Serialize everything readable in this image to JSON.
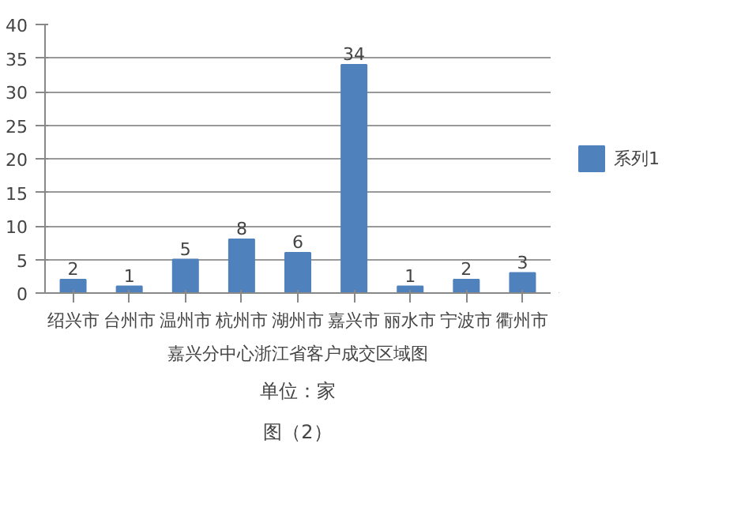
{
  "chart_data": {
    "type": "bar",
    "categories": [
      "绍兴市",
      "台州市",
      "温州市",
      "杭州市",
      "湖州市",
      "嘉兴市",
      "丽水市",
      "宁波市",
      "衢州市"
    ],
    "series": [
      {
        "name": "系列1",
        "color": "#4f81bd",
        "values": [
          2,
          1,
          5,
          8,
          6,
          34,
          1,
          2,
          3
        ]
      }
    ],
    "ylim": [
      0,
      40
    ],
    "yticks": [
      0,
      5,
      10,
      15,
      20,
      25,
      30,
      35,
      40
    ],
    "grid": "y",
    "legend": "right",
    "data_labels": true,
    "xlabel": "嘉兴分中心浙江省客户成交区域图",
    "annotations": [
      "单位：家",
      "图（2）"
    ]
  }
}
